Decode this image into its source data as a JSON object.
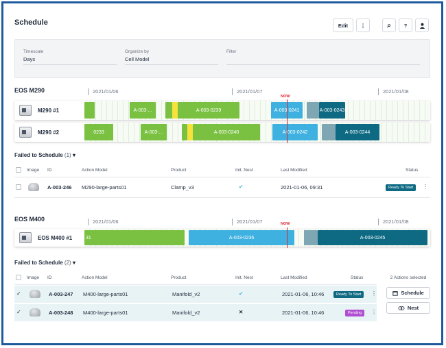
{
  "header": {
    "title": "Schedule",
    "edit_label": "Edit",
    "more_icon": "⋮",
    "search_icon": "⌕",
    "help_icon": "?",
    "user_icon": "👤"
  },
  "filters": {
    "timescale": {
      "label": "Timescale",
      "value": "Days"
    },
    "organize": {
      "label": "Organize by",
      "value": "Cell Model"
    },
    "filter": {
      "label": "Filter",
      "value": ""
    }
  },
  "colors": {
    "green": "#7ac142",
    "yellow": "#f5e23c",
    "blue": "#3eb1e0",
    "teal": "#0e6a83",
    "grey_teal": "#7fa7b3",
    "now": "#e0202a",
    "ready": "#0e6a83",
    "pending": "#b04fd1"
  },
  "sections": [
    {
      "title": "EOS M290",
      "dates": [
        "2021/01/06",
        "2021/01/07",
        "2021/01/08"
      ],
      "now_label": "NOW",
      "machines": [
        {
          "name": "M290 #1",
          "bars": [
            {
              "label": "",
              "color": "green"
            },
            {
              "label": "A-003-...",
              "color": "green"
            },
            {
              "label": "",
              "color": "green"
            },
            {
              "label": "",
              "color": "yellow"
            },
            {
              "label": "A-003-0239",
              "color": "green"
            },
            {
              "label": "A-003-0241",
              "color": "blue"
            },
            {
              "label": "",
              "color": "grey_teal"
            },
            {
              "label": "A-003-0243",
              "color": "teal"
            }
          ]
        },
        {
          "name": "M290 #2",
          "bars": [
            {
              "label": "0233",
              "color": "green"
            },
            {
              "label": "A-003-...",
              "color": "green"
            },
            {
              "label": "",
              "color": "green"
            },
            {
              "label": "",
              "color": "yellow"
            },
            {
              "label": "A-003-0240",
              "color": "green"
            },
            {
              "label": "A-003-0242",
              "color": "blue"
            },
            {
              "label": "",
              "color": "grey_teal"
            },
            {
              "label": "A-003-0244",
              "color": "teal"
            }
          ]
        }
      ],
      "failed": {
        "title": "Failed to Schedule",
        "count": "(1)",
        "columns": [
          "Image",
          "ID",
          "Action Model",
          "Product",
          "Init. Nest",
          "Last Modified",
          "Status"
        ],
        "rows": [
          {
            "id": "A-003-246",
            "model": "M290-large-parts01",
            "product": "Clamp_v3",
            "nest": "✔",
            "modified": "2021-01-06, 09:31",
            "status": "Ready To Start",
            "status_color": "ready"
          }
        ]
      }
    },
    {
      "title": "EOS M400",
      "dates": [
        "2021/01/06",
        "2021/01/07",
        "2021/01/08"
      ],
      "now_label": "NOW",
      "machines": [
        {
          "name": "EOS M400 #1",
          "bars": [
            {
              "label": "31",
              "color": "green"
            },
            {
              "label": "A-003-0236",
              "color": "blue"
            },
            {
              "label": "",
              "color": "grey_teal"
            },
            {
              "label": "A-003-0245",
              "color": "teal"
            }
          ]
        }
      ],
      "failed": {
        "title": "Failed to Schedule",
        "count": "(2)",
        "columns": [
          "Image",
          "ID",
          "Action Model",
          "Product",
          "Init. Nest",
          "Last Modified",
          "Status"
        ],
        "rows": [
          {
            "id": "A-003-247",
            "model": "M400-large-parts01",
            "product": "Manifold_v2",
            "nest": "✔",
            "modified": "2021-01-06, 10:46",
            "status": "Ready To Start",
            "status_color": "ready"
          },
          {
            "id": "A-003-248",
            "model": "M400-large-parts01",
            "product": "Manifold_v2",
            "nest": "✕",
            "modified": "2021-01-06, 10:46",
            "status": "Pending",
            "status_color": "pending"
          }
        ]
      },
      "actions": {
        "selected_label": "2 Actions selected",
        "schedule_label": "Schedule",
        "nest_label": "Nest"
      }
    }
  ]
}
